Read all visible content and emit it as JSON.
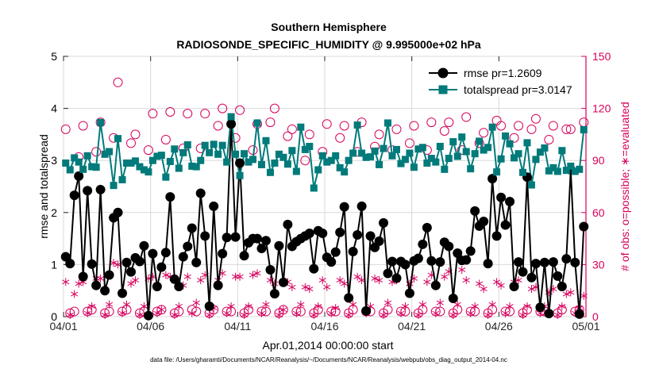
{
  "chart_data": {
    "type": "line",
    "title": "Southern Hemisphere",
    "subtitle": "RADIOSONDE_SPECIFIC_HUMIDITY @ 9.995000e+02 hPa",
    "xlabel": "Apr.01,2014 00:00:00 start",
    "ylabel": "rmse and totalspread",
    "y2label": "# of obs: o=possible; ∗=evaluated",
    "footnote": "data file: /Users/gharamti/Documents/NCAR/Reanalysis/~/Documents/NCAR/Reanalysis/webpub/obs_diag_output_2014-04.nc",
    "xlim": [
      0,
      30
    ],
    "ylim": [
      0,
      5
    ],
    "y2lim": [
      0,
      150
    ],
    "xticks": [
      0,
      5,
      10,
      15,
      20,
      25,
      30
    ],
    "xticklabels": [
      "04/01",
      "04/06",
      "04/11",
      "04/16",
      "04/21",
      "04/26",
      "05/01"
    ],
    "yticks": [
      0,
      1,
      2,
      3,
      4,
      5
    ],
    "yticklabels": [
      "0",
      "1",
      "2",
      "3",
      "4",
      "5"
    ],
    "y2ticks": [
      0,
      30,
      60,
      90,
      120,
      150
    ],
    "y2ticklabels": [
      "0",
      "30",
      "60",
      "90",
      "120",
      "150"
    ],
    "left_axis_color": "#000000",
    "right_axis_color": "#d6005c",
    "legend_position": "top-right",
    "series": [
      {
        "name": "rmse pr=1.2609",
        "axis": "left",
        "color": "#000000",
        "marker": "filled-circle",
        "x": [
          0.125,
          0.375,
          0.625,
          0.875,
          1.125,
          1.375,
          1.625,
          1.875,
          2.125,
          2.375,
          2.625,
          2.875,
          3.125,
          3.375,
          3.625,
          3.875,
          4.125,
          4.375,
          4.625,
          4.875,
          5.125,
          5.375,
          5.625,
          5.875,
          6.125,
          6.375,
          6.625,
          6.875,
          7.125,
          7.375,
          7.625,
          7.875,
          8.125,
          8.375,
          8.625,
          8.875,
          9.125,
          9.375,
          9.625,
          9.875,
          10.125,
          10.375,
          10.625,
          10.875,
          11.125,
          11.375,
          11.625,
          11.875,
          12.125,
          12.375,
          12.625,
          12.875,
          13.125,
          13.375,
          13.625,
          13.875,
          14.125,
          14.375,
          14.625,
          14.875,
          15.125,
          15.375,
          15.625,
          15.875,
          16.125,
          16.375,
          16.625,
          16.875,
          17.125,
          17.375,
          17.625,
          17.875,
          18.125,
          18.375,
          18.625,
          18.875,
          19.125,
          19.375,
          19.625,
          19.875,
          20.125,
          20.375,
          20.625,
          20.875,
          21.125,
          21.375,
          21.625,
          21.875,
          22.125,
          22.375,
          22.625,
          22.875,
          23.125,
          23.375,
          23.625,
          23.875,
          24.125,
          24.375,
          24.625,
          24.875,
          25.125,
          25.375,
          25.625,
          25.875,
          26.125,
          26.375,
          26.625,
          26.875,
          27.125,
          27.375,
          27.625,
          27.875,
          28.125,
          28.375,
          28.625,
          28.875,
          29.125,
          29.375,
          29.625,
          29.875
        ],
        "values": [
          1.15,
          1.02,
          2.33,
          2.7,
          0.77,
          2.42,
          1.01,
          0.6,
          2.44,
          0.5,
          0.8,
          1.9,
          2.0,
          0.45,
          1.04,
          0.86,
          1.13,
          1.06,
          1.36,
          0.02,
          1.21,
          0.58,
          0.95,
          1.23,
          2.3,
          0.72,
          0.58,
          1.15,
          1.35,
          1.7,
          1.04,
          2.37,
          1.55,
          0.2,
          2.12,
          0.6,
          1.21,
          1.52,
          3.7,
          1.53,
          2.95,
          1.17,
          1.42,
          1.5,
          1.5,
          1.31,
          1.46,
          0.9,
          0.44,
          1.36,
          0.66,
          1.77,
          1.35,
          1.44,
          1.5,
          1.55,
          1.6,
          0.92,
          1.65,
          1.6,
          1.14,
          1.05,
          1.24,
          1.62,
          2.11,
          0.36,
          1.25,
          1.57,
          2.12,
          0.11,
          1.55,
          1.33,
          1.45,
          1.8,
          0.83,
          1.06,
          0.74,
          1.06,
          1.0,
          0.45,
          1.07,
          1.12,
          1.39,
          1.71,
          1.07,
          0.6,
          1.05,
          1.43,
          1.35,
          0.35,
          1.22,
          1.08,
          1.09,
          1.26,
          2.03,
          1.74,
          1.83,
          1.02,
          2.65,
          1.55,
          2.29,
          1.76,
          2.21,
          0.58,
          1.05,
          0.86,
          2.68,
          0.75,
          1.02,
          0.18,
          1.04,
          0.06,
          1.05,
          0.78,
          0.58,
          1.11,
          2.82,
          1.04,
          0.05,
          1.73
        ]
      },
      {
        "name": "totalspread pr=3.0147",
        "axis": "left",
        "color": "#007a7a",
        "marker": "filled-square",
        "x": [
          0.125,
          0.375,
          0.625,
          0.875,
          1.125,
          1.375,
          1.625,
          1.875,
          2.125,
          2.375,
          2.625,
          2.875,
          3.125,
          3.375,
          3.625,
          3.875,
          4.125,
          4.375,
          4.625,
          4.875,
          5.125,
          5.375,
          5.625,
          5.875,
          6.125,
          6.375,
          6.625,
          6.875,
          7.125,
          7.375,
          7.625,
          7.875,
          8.125,
          8.375,
          8.625,
          8.875,
          9.125,
          9.375,
          9.625,
          9.875,
          10.125,
          10.375,
          10.625,
          10.875,
          11.125,
          11.375,
          11.625,
          11.875,
          12.125,
          12.375,
          12.625,
          12.875,
          13.125,
          13.375,
          13.625,
          13.875,
          14.125,
          14.375,
          14.625,
          14.875,
          15.125,
          15.375,
          15.625,
          15.875,
          16.125,
          16.375,
          16.625,
          16.875,
          17.125,
          17.375,
          17.625,
          17.875,
          18.125,
          18.375,
          18.625,
          18.875,
          19.125,
          19.375,
          19.625,
          19.875,
          20.125,
          20.375,
          20.625,
          20.875,
          21.125,
          21.375,
          21.625,
          21.875,
          22.125,
          22.375,
          22.625,
          22.875,
          23.125,
          23.375,
          23.625,
          23.875,
          24.125,
          24.375,
          24.625,
          24.875,
          25.125,
          25.375,
          25.625,
          25.875,
          26.125,
          26.375,
          26.625,
          26.875,
          27.125,
          27.375,
          27.625,
          27.875,
          28.125,
          28.375,
          28.625,
          28.875,
          29.125,
          29.375,
          29.625,
          29.875
        ],
        "values": [
          2.95,
          2.82,
          3.05,
          2.97,
          2.83,
          3.09,
          2.88,
          2.87,
          3.73,
          3.12,
          3.17,
          2.52,
          3.42,
          2.63,
          2.95,
          2.95,
          2.99,
          2.88,
          2.82,
          2.78,
          3.0,
          3.08,
          3.1,
          2.68,
          2.98,
          3.22,
          2.85,
          3.15,
          3.3,
          2.89,
          2.88,
          3.0,
          3.29,
          3.15,
          3.31,
          3.12,
          3.29,
          2.97,
          3.84,
          3.12,
          2.71,
          3.13,
          2.97,
          3.02,
          3.72,
          2.92,
          3.38,
          2.77,
          2.95,
          3.12,
          3.06,
          2.93,
          3.19,
          2.79,
          3.64,
          3.21,
          3.27,
          2.47,
          2.82,
          3.09,
          2.97,
          3.0,
          3.09,
          2.86,
          2.78,
          3.0,
          3.14,
          3.68,
          3.14,
          3.06,
          3.07,
          3.18,
          2.92,
          3.23,
          3.72,
          3.09,
          3.21,
          2.94,
          3.02,
          3.14,
          2.87,
          3.22,
          3.25,
          2.95,
          3.04,
          2.97,
          3.27,
          2.83,
          3.04,
          3.36,
          3.08,
          3.45,
          3.17,
          2.84,
          3.13,
          3.37,
          3.2,
          3.25,
          3.64,
          2.78,
          3.03,
          3.47,
          3.32,
          3.05,
          3.13,
          2.77,
          3.34,
          2.53,
          3.02,
          3.16,
          3.24,
          2.8,
          2.86,
          2.79,
          3.19,
          2.81,
          2.89,
          2.79,
          2.83,
          3.59
        ]
      },
      {
        "name": "# of obs possible",
        "axis": "right",
        "color": "#d6005c",
        "marker": "open-circle",
        "pattern": "four obs per day: one near 0, one near 1, two high",
        "x": [
          0.125,
          0.375,
          0.625,
          0.875,
          1.125,
          1.375,
          1.625,
          1.875,
          2.125,
          2.375,
          2.625,
          2.875,
          3.125,
          3.375,
          3.625,
          3.875,
          4.125,
          4.375,
          4.625,
          4.875,
          5.125,
          5.375,
          5.625,
          5.875,
          6.125,
          6.375,
          6.625,
          6.875,
          7.125,
          7.375,
          7.625,
          7.875,
          8.125,
          8.375,
          8.625,
          8.875,
          9.125,
          9.375,
          9.625,
          9.875,
          10.125,
          10.375,
          10.625,
          10.875,
          11.125,
          11.375,
          11.625,
          11.875,
          12.125,
          12.375,
          12.625,
          12.875,
          13.125,
          13.375,
          13.625,
          13.875,
          14.125,
          14.375,
          14.625,
          14.875,
          15.125,
          15.375,
          15.625,
          15.875,
          16.125,
          16.375,
          16.625,
          16.875,
          17.125,
          17.375,
          17.625,
          17.875,
          18.125,
          18.375,
          18.625,
          18.875,
          19.125,
          19.375,
          19.625,
          19.875,
          20.125,
          20.375,
          20.625,
          20.875,
          21.125,
          21.375,
          21.625,
          21.875,
          22.125,
          22.375,
          22.625,
          22.875,
          23.125,
          23.375,
          23.625,
          23.875,
          24.125,
          24.375,
          24.625,
          24.875,
          25.125,
          25.375,
          25.625,
          25.875,
          26.125,
          26.375,
          26.625,
          26.875,
          27.125,
          27.375,
          27.625,
          27.875,
          28.125,
          28.375,
          28.625,
          28.875,
          29.125,
          29.375,
          29.625,
          29.875
        ],
        "values": [
          108,
          2,
          3,
          92,
          110,
          3,
          4,
          95,
          112,
          2,
          3,
          103,
          135,
          3,
          4,
          100,
          105,
          2,
          3,
          96,
          117,
          3,
          4,
          102,
          118,
          2,
          3,
          97,
          117,
          4,
          3,
          97,
          117,
          2,
          4,
          110,
          120,
          3,
          3,
          103,
          119,
          2,
          4,
          96,
          111,
          3,
          3,
          112,
          120,
          2,
          4,
          104,
          108,
          3,
          3,
          90,
          105,
          2,
          4,
          95,
          111,
          3,
          3,
          103,
          110,
          2,
          4,
          95,
          112,
          3,
          3,
          98,
          105,
          2,
          4,
          96,
          108,
          3,
          3,
          100,
          110,
          2,
          4,
          96,
          112,
          3,
          3,
          107,
          112,
          2,
          4,
          96,
          115,
          3,
          3,
          100,
          106,
          2,
          4,
          113,
          110,
          3,
          3,
          103,
          110,
          2,
          4,
          108,
          114,
          3,
          3,
          102,
          110,
          2,
          4,
          108,
          108,
          3,
          4,
          112
        ]
      },
      {
        "name": "# of obs evaluated",
        "axis": "right",
        "color": "#d6005c",
        "marker": "asterisk",
        "x": [
          0.125,
          0.375,
          0.625,
          0.875,
          1.125,
          1.375,
          1.625,
          1.875,
          2.125,
          2.375,
          2.625,
          2.875,
          3.125,
          3.375,
          3.625,
          3.875,
          4.125,
          4.375,
          4.625,
          4.875,
          5.125,
          5.375,
          5.625,
          5.875,
          6.125,
          6.375,
          6.625,
          6.875,
          7.125,
          7.375,
          7.625,
          7.875,
          8.125,
          8.375,
          8.625,
          8.875,
          9.125,
          9.375,
          9.625,
          9.875,
          10.125,
          10.375,
          10.625,
          10.875,
          11.125,
          11.375,
          11.625,
          11.875,
          12.125,
          12.375,
          12.625,
          12.875,
          13.125,
          13.375,
          13.625,
          13.875,
          14.125,
          14.375,
          14.625,
          14.875,
          15.125,
          15.375,
          15.625,
          15.875,
          16.125,
          16.375,
          16.625,
          16.875,
          17.125,
          17.375,
          17.625,
          17.875,
          18.125,
          18.375,
          18.625,
          18.875,
          19.125,
          19.375,
          19.625,
          19.875,
          20.125,
          20.375,
          20.625,
          20.875,
          21.125,
          21.375,
          21.625,
          21.875,
          22.125,
          22.375,
          22.625,
          22.875,
          23.125,
          23.375,
          23.625,
          23.875,
          24.125,
          24.375,
          24.625,
          24.875,
          25.125,
          25.375,
          25.625,
          25.875,
          26.125,
          26.375,
          26.625,
          26.875,
          27.125,
          27.375,
          27.625,
          27.875,
          28.125,
          28.375,
          28.625,
          28.875,
          29.125,
          29.375,
          29.625,
          29.875
        ],
        "values": [
          20,
          1,
          13,
          19,
          20,
          2,
          6,
          22,
          22,
          1,
          7,
          31,
          30,
          2,
          7,
          19,
          21,
          1,
          6,
          22,
          23,
          2,
          4,
          24,
          23,
          1,
          6,
          18,
          23,
          2,
          8,
          21,
          24,
          1,
          5,
          21,
          25,
          2,
          6,
          23,
          23,
          1,
          6,
          24,
          25,
          2,
          7,
          21,
          19,
          1,
          4,
          20,
          17,
          2,
          7,
          17,
          16,
          1,
          6,
          21,
          17,
          2,
          5,
          21,
          19,
          1,
          7,
          23,
          21,
          2,
          6,
          22,
          21,
          1,
          8,
          20,
          21,
          2,
          6,
          19,
          22,
          1,
          7,
          20,
          24,
          2,
          8,
          23,
          26,
          1,
          7,
          27,
          21,
          2,
          6,
          19,
          16,
          1,
          7,
          20,
          18,
          2,
          6,
          20,
          21,
          1,
          6,
          16,
          17,
          2,
          6,
          14,
          16,
          1,
          6,
          13,
          14,
          2,
          5,
          12
        ]
      }
    ]
  }
}
